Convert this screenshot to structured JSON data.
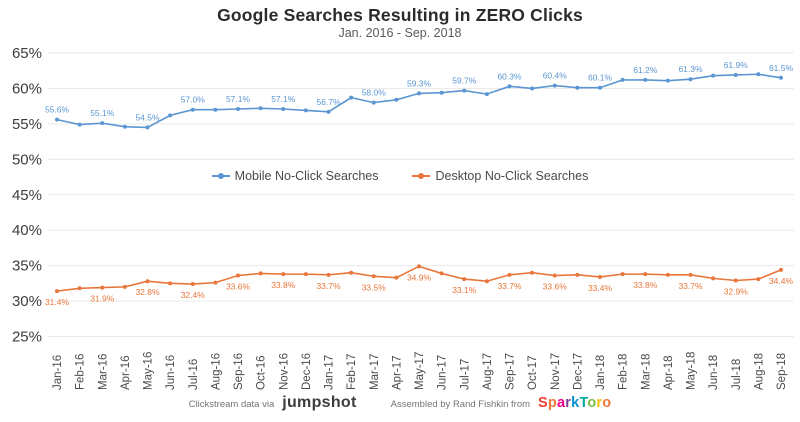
{
  "title": "Google Searches Resulting in ZERO Clicks",
  "subtitle": "Jan. 2016 - Sep. 2018",
  "legend": [
    {
      "label": "Mobile No-Click Searches",
      "color": "#5b96d2"
    },
    {
      "label": "Desktop No-Click Searches",
      "color": "#e8763a"
    }
  ],
  "footer": {
    "credit_left": "Clickstream data via",
    "jumpshot_logo": "jumpshot",
    "credit_right": "Assembled by Rand Fishkin from",
    "sparktoro_logo": "SparkToro",
    "sparktoro_letter_colors": [
      "#ee4035",
      "#f37736",
      "#ec008c",
      "#7b3f99",
      "#0392cf",
      "#00a99d",
      "#7bc043",
      "#fdc010",
      "#f37736"
    ]
  },
  "chart_data": {
    "type": "line",
    "title": "Google Searches Resulting in ZERO Clicks",
    "subtitle": "Jan. 2016 - Sep. 2018",
    "categories": [
      "Jan-16",
      "Feb-16",
      "Mar-16",
      "Apr-16",
      "May-16",
      "Jun-16",
      "Jul-16",
      "Aug-16",
      "Sep-16",
      "Oct-16",
      "Nov-16",
      "Dec-16",
      "Jan-17",
      "Feb-17",
      "Mar-17",
      "Apr-17",
      "May-17",
      "Jun-17",
      "Jul-17",
      "Aug-17",
      "Sep-17",
      "Oct-17",
      "Nov-17",
      "Dec-17",
      "Jan-18",
      "Feb-18",
      "Mar-18",
      "Apr-18",
      "May-18",
      "Jun-18",
      "Jul-18",
      "Aug-18",
      "Sep-18"
    ],
    "series": [
      {
        "name": "Mobile No-Click Searches",
        "color": "#5b96d2",
        "labels_below": false,
        "values": [
          55.6,
          54.9,
          55.1,
          54.6,
          54.5,
          56.2,
          57.0,
          57.0,
          57.1,
          57.2,
          57.1,
          56.9,
          56.7,
          58.7,
          58.0,
          58.4,
          59.3,
          59.4,
          59.7,
          59.2,
          60.3,
          60.0,
          60.4,
          60.1,
          60.1,
          61.2,
          61.2,
          61.1,
          61.3,
          61.8,
          61.9,
          62.0,
          61.5
        ]
      },
      {
        "name": "Desktop No-Click Searches",
        "color": "#e8763a",
        "labels_below": true,
        "values": [
          31.4,
          31.8,
          31.9,
          32.0,
          32.8,
          32.5,
          32.4,
          32.6,
          33.6,
          33.9,
          33.8,
          33.8,
          33.7,
          34.0,
          33.5,
          33.3,
          34.9,
          33.9,
          33.1,
          32.8,
          33.7,
          34.0,
          33.6,
          33.7,
          33.4,
          33.8,
          33.8,
          33.7,
          33.7,
          33.2,
          32.9,
          33.1,
          34.4
        ]
      }
    ],
    "labeled_points": {
      "Mobile No-Click Searches": [
        "55.6%",
        "55.1%",
        "54.5%",
        "57.0%",
        "57.1%",
        "57.1%",
        "56.7%",
        "58.0%",
        "59.3%",
        "59.7%",
        "60.3%",
        "60.4%",
        "60.1%",
        "61.2%",
        "61.3%",
        "61.9%",
        "61.5%"
      ],
      "Desktop No-Click Searches": [
        "31.4%",
        "31.9%",
        "32.8%",
        "32.4%",
        "33.6%",
        "33.8%",
        "33.7%",
        "33.5%",
        "34.9%",
        "33.1%",
        "33.7%",
        "33.6%",
        "33.4%",
        "33.8%",
        "33.7%",
        "32.9%",
        "34.4%"
      ]
    },
    "label_every": 2,
    "y_ticks": [
      "65%",
      "60%",
      "55%",
      "50%",
      "45%",
      "40%",
      "35%",
      "30%",
      "25%"
    ],
    "ylim": [
      25,
      65
    ],
    "xlabel": "",
    "ylabel": "",
    "grid": true,
    "legend_position": "middle-center"
  }
}
